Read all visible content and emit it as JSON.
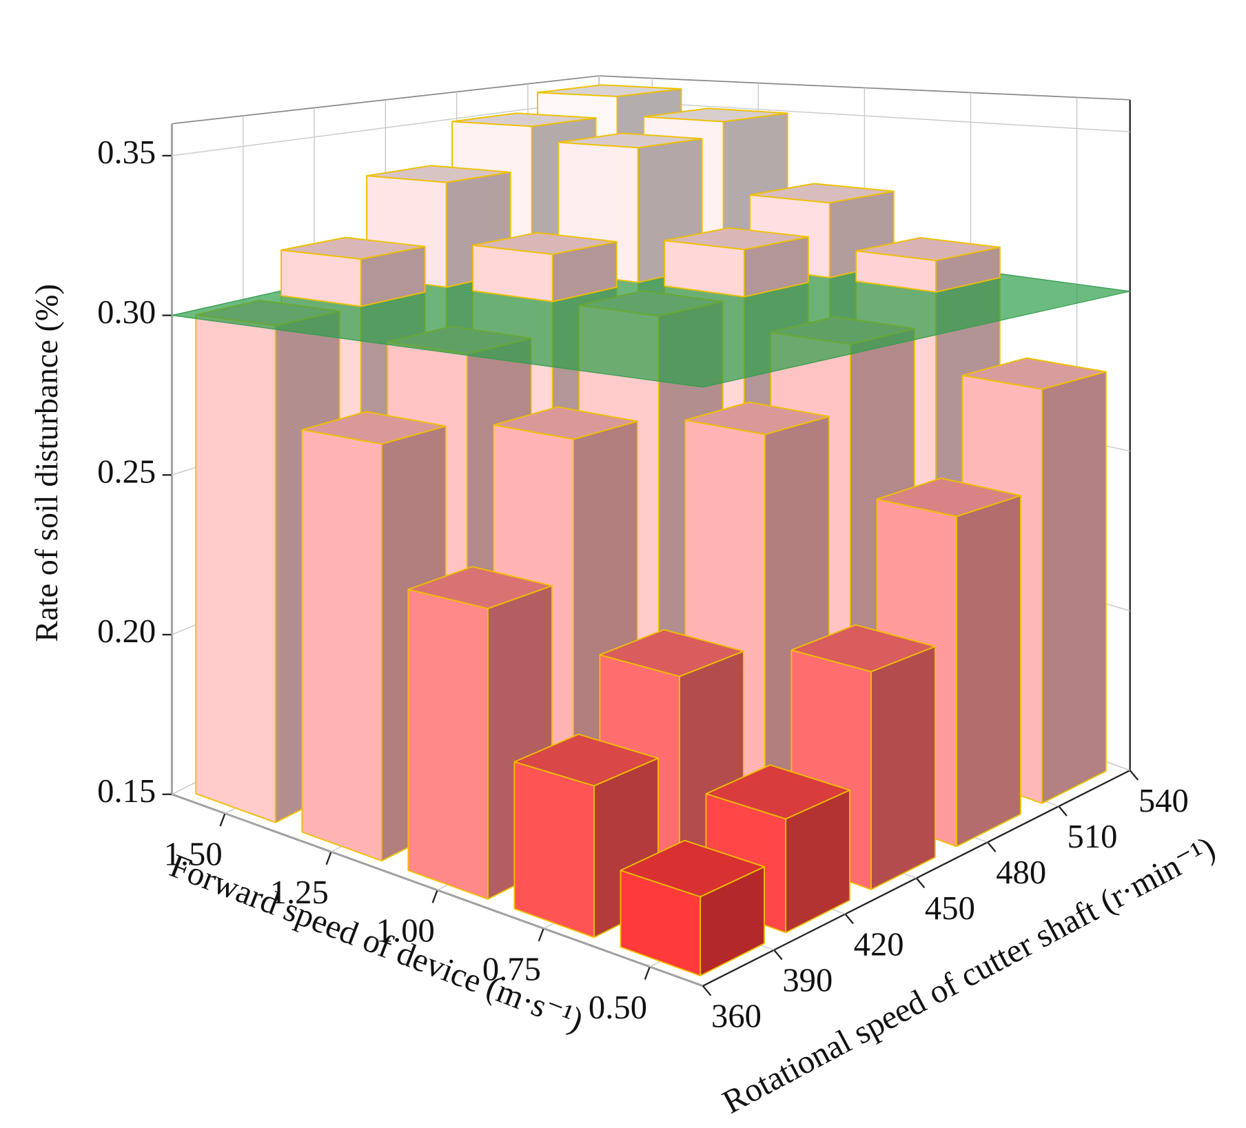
{
  "chart_data": {
    "type": "bar3d",
    "x_label": "Forward speed of device (m·s⁻¹)",
    "y_label": "Rotational speed of cutter shaft (r·min⁻¹)",
    "z_label": "Rate of soil disturbance (%)",
    "x": [
      1.5,
      1.25,
      1.0,
      0.75,
      0.5
    ],
    "y": [
      378,
      414,
      450,
      486,
      522
    ],
    "values": [
      [
        0.3,
        0.315,
        0.335,
        0.35,
        0.357
      ],
      [
        0.27,
        0.29,
        0.315,
        0.345,
        0.35
      ],
      [
        0.23,
        0.27,
        0.3,
        0.315,
        0.325
      ],
      [
        0.19,
        0.21,
        0.27,
        0.29,
        0.31
      ],
      [
        0.17,
        0.18,
        0.21,
        0.245,
        0.275
      ]
    ],
    "xlim": [
      0.375,
      1.625
    ],
    "xticks": [
      {
        "value": 1.5,
        "label": "1.50"
      },
      {
        "value": 1.25,
        "label": "1.25"
      },
      {
        "value": 1.0,
        "label": "1.00"
      },
      {
        "value": 0.75,
        "label": "0.75"
      },
      {
        "value": 0.5,
        "label": "0.50"
      }
    ],
    "ylim": [
      360,
      540
    ],
    "yticks": [
      360,
      390,
      420,
      450,
      480,
      510,
      540
    ],
    "zlim": [
      0.15,
      0.36
    ],
    "zticks": [
      {
        "value": 0.15,
        "label": "0.15"
      },
      {
        "value": 0.2,
        "label": "0.20"
      },
      {
        "value": 0.25,
        "label": "0.25"
      },
      {
        "value": 0.3,
        "label": "0.30"
      },
      {
        "value": 0.35,
        "label": "0.35"
      }
    ],
    "reference_plane": {
      "value": 0.3,
      "color": "#2e9e4a"
    },
    "colormap": [
      "#ff2020",
      "#ffa8a8",
      "#fffafa"
    ],
    "edge_color": "#f0c000",
    "grid": true
  }
}
